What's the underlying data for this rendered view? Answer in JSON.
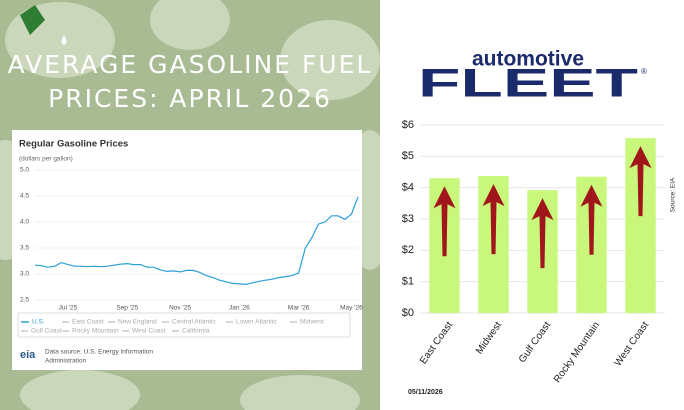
{
  "header": {
    "title_lines": [
      "AVERAGE GASOLINE FUEL",
      "PRICES: APRIL 2026"
    ],
    "logo_top": "automotive",
    "logo_main": "FLEET",
    "logo_mark": "®",
    "date": "05/11/2026"
  },
  "chart_data": [
    {
      "type": "line",
      "title": "Regular Gasoline Prices",
      "subtitle": "(dollars per gallon)",
      "categories": [
        null,
        null,
        null,
        null,
        null,
        "Jul '25",
        null,
        null,
        null,
        null,
        null,
        null,
        null,
        null,
        "Sep '25",
        null,
        null,
        null,
        null,
        null,
        null,
        null,
        "Nov '25",
        null,
        null,
        null,
        null,
        null,
        null,
        null,
        null,
        "Jan '26",
        null,
        null,
        null,
        null,
        null,
        null,
        null,
        null,
        "Mar '26",
        null,
        null,
        null,
        null,
        null,
        null,
        null,
        "May '26",
        null
      ],
      "series": [
        {
          "name": "U.S.",
          "color": "#2a9fd6",
          "values": [
            3.17,
            3.16,
            3.13,
            3.15,
            3.22,
            3.18,
            3.15,
            3.15,
            3.14,
            3.15,
            3.14,
            3.15,
            3.17,
            3.19,
            3.2,
            3.18,
            3.18,
            3.13,
            3.13,
            3.08,
            3.05,
            3.06,
            3.04,
            3.07,
            3.07,
            3.03,
            2.97,
            2.93,
            2.88,
            2.85,
            2.82,
            2.81,
            2.8,
            2.83,
            2.86,
            2.88,
            2.9,
            2.93,
            2.95,
            2.97,
            3.02,
            3.5,
            3.7,
            3.96,
            4.0,
            4.12,
            4.12,
            4.05,
            4.15,
            4.48
          ]
        }
      ],
      "inactive_series": [
        "East Coast",
        "New England",
        "Central Atlantic",
        "Lower Atlantic",
        "Midwest",
        "Gulf Coast",
        "Rocky Mountain",
        "West Coast",
        "California"
      ],
      "ylim": [
        2.5,
        5.0
      ],
      "yticks": [
        {
          "value": 2.5,
          "label": "2.5"
        },
        {
          "value": 3.0,
          "label": "3.0"
        },
        {
          "value": 3.5,
          "label": "3.5"
        },
        {
          "value": 4.0,
          "label": "4.0"
        },
        {
          "value": 4.5,
          "label": "4.5"
        },
        {
          "value": 5.0,
          "label": "5.0"
        }
      ],
      "grid": true,
      "source_lines": [
        "Data source: U.S. Energy Information",
        "Administration"
      ],
      "logo": "eia"
    },
    {
      "type": "bar",
      "categories": [
        "East Coast",
        "Midwest",
        "Gulf Coast",
        "Rocky Mountain",
        "West Coast"
      ],
      "values": [
        4.3,
        4.37,
        3.92,
        4.35,
        5.58
      ],
      "color": "#c8f77c",
      "ylim": [
        0,
        6
      ],
      "yticks": [
        {
          "value": 0,
          "label": "$0"
        },
        {
          "value": 1,
          "label": "$1"
        },
        {
          "value": 2,
          "label": "$2"
        },
        {
          "value": 3,
          "label": "$3"
        },
        {
          "value": 4,
          "label": "$4"
        },
        {
          "value": 5,
          "label": "$5"
        },
        {
          "value": 6,
          "label": "$6"
        }
      ],
      "grid": true,
      "source": "Source: EIA"
    }
  ]
}
